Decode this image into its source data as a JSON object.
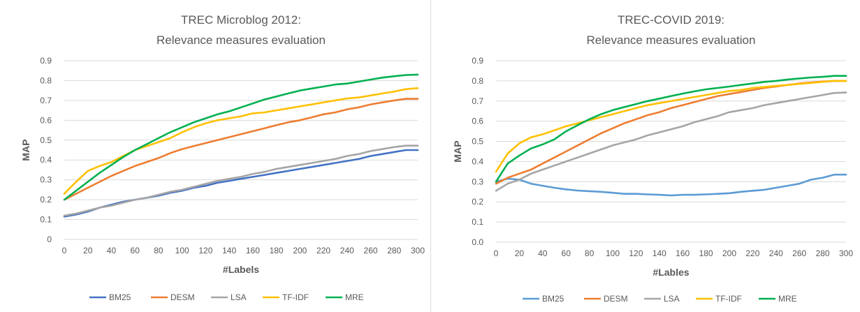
{
  "chart_data": [
    {
      "type": "line",
      "title_lines": [
        "TREC Microblog 2012:",
        "Relevance measures evaluation"
      ],
      "xlabel": "#Labels",
      "ylabel": "MAP",
      "x": [
        0,
        10,
        20,
        30,
        40,
        50,
        60,
        70,
        80,
        90,
        100,
        110,
        120,
        130,
        140,
        150,
        160,
        170,
        180,
        190,
        200,
        210,
        220,
        230,
        240,
        250,
        260,
        270,
        280,
        290,
        300
      ],
      "xticks": [
        0,
        20,
        40,
        60,
        80,
        100,
        120,
        140,
        160,
        180,
        200,
        220,
        240,
        260,
        280,
        300
      ],
      "xlim": [
        0,
        300
      ],
      "ylim": [
        0,
        0.9
      ],
      "yticks": [
        0,
        0.1,
        0.2,
        0.3,
        0.4,
        0.5,
        0.6,
        0.7,
        0.8,
        0.9
      ],
      "ytick_labels": [
        "0",
        "0.1",
        "0.2",
        "0.3",
        "0.4",
        "0.5",
        "0.6",
        "0.7",
        "0.8",
        "0.9"
      ],
      "grid": true,
      "legend_position": "bottom",
      "series": [
        {
          "name": "BM25",
          "color": "#4472C4",
          "values": [
            0.115,
            0.125,
            0.14,
            0.16,
            0.175,
            0.19,
            0.2,
            0.21,
            0.22,
            0.235,
            0.245,
            0.26,
            0.27,
            0.285,
            0.295,
            0.305,
            0.315,
            0.325,
            0.335,
            0.345,
            0.355,
            0.365,
            0.375,
            0.385,
            0.395,
            0.405,
            0.42,
            0.43,
            0.44,
            0.45,
            0.45
          ]
        },
        {
          "name": "DESM",
          "color": "#ED7D31",
          "values": [
            0.2,
            0.23,
            0.26,
            0.29,
            0.32,
            0.345,
            0.37,
            0.39,
            0.41,
            0.435,
            0.455,
            0.47,
            0.485,
            0.5,
            0.515,
            0.53,
            0.545,
            0.56,
            0.575,
            0.59,
            0.6,
            0.615,
            0.63,
            0.64,
            0.655,
            0.665,
            0.68,
            0.69,
            0.7,
            0.708,
            0.708
          ]
        },
        {
          "name": "LSA",
          "color": "#A5A5A5",
          "values": [
            0.12,
            0.13,
            0.145,
            0.16,
            0.17,
            0.185,
            0.2,
            0.21,
            0.225,
            0.24,
            0.25,
            0.265,
            0.28,
            0.295,
            0.305,
            0.315,
            0.33,
            0.34,
            0.355,
            0.365,
            0.375,
            0.385,
            0.395,
            0.405,
            0.42,
            0.43,
            0.445,
            0.455,
            0.465,
            0.472,
            0.472
          ]
        },
        {
          "name": "TF-IDF",
          "color": "#FFC000",
          "values": [
            0.23,
            0.29,
            0.345,
            0.37,
            0.39,
            0.42,
            0.45,
            0.47,
            0.49,
            0.51,
            0.54,
            0.565,
            0.585,
            0.6,
            0.61,
            0.62,
            0.635,
            0.64,
            0.65,
            0.66,
            0.67,
            0.68,
            0.69,
            0.7,
            0.71,
            0.715,
            0.725,
            0.735,
            0.745,
            0.757,
            0.762
          ]
        },
        {
          "name": "MRE",
          "color": "#00B050",
          "values": [
            0.2,
            0.245,
            0.29,
            0.335,
            0.375,
            0.415,
            0.45,
            0.48,
            0.51,
            0.54,
            0.565,
            0.59,
            0.61,
            0.63,
            0.645,
            0.665,
            0.685,
            0.705,
            0.72,
            0.735,
            0.75,
            0.76,
            0.77,
            0.78,
            0.785,
            0.795,
            0.805,
            0.815,
            0.822,
            0.828,
            0.83
          ]
        }
      ]
    },
    {
      "type": "line",
      "title_lines": [
        "TREC-COVID 2019:",
        "Relevance measures evaluation"
      ],
      "xlabel": "#Lables",
      "ylabel": "MAP",
      "x": [
        0,
        10,
        20,
        30,
        40,
        50,
        60,
        70,
        80,
        90,
        100,
        110,
        120,
        130,
        140,
        150,
        160,
        170,
        180,
        190,
        200,
        210,
        220,
        230,
        240,
        250,
        260,
        270,
        280,
        290,
        300
      ],
      "xticks": [
        0,
        20,
        40,
        60,
        80,
        100,
        120,
        140,
        160,
        180,
        200,
        220,
        240,
        260,
        280,
        300
      ],
      "xlim": [
        0,
        300
      ],
      "ylim": [
        0,
        0.9
      ],
      "yticks": [
        0,
        0.1,
        0.2,
        0.3,
        0.4,
        0.5,
        0.6,
        0.7,
        0.8,
        0.9
      ],
      "ytick_labels": [
        "0.0",
        "0.1",
        "0.2",
        "0.3",
        "0.4",
        "0.5",
        "0.6",
        "0.7",
        "0.8",
        "0.9"
      ],
      "grid": true,
      "legend_position": "bottom",
      "series": [
        {
          "name": "BM25",
          "color": "#5B9BD5",
          "values": [
            0.3,
            0.315,
            0.31,
            0.29,
            0.28,
            0.27,
            0.262,
            0.256,
            0.253,
            0.25,
            0.245,
            0.24,
            0.24,
            0.237,
            0.235,
            0.232,
            0.235,
            0.235,
            0.237,
            0.24,
            0.243,
            0.25,
            0.255,
            0.26,
            0.27,
            0.28,
            0.29,
            0.31,
            0.32,
            0.335,
            0.335
          ]
        },
        {
          "name": "DESM",
          "color": "#ED7D31",
          "values": [
            0.29,
            0.32,
            0.34,
            0.36,
            0.39,
            0.42,
            0.45,
            0.48,
            0.51,
            0.54,
            0.565,
            0.59,
            0.61,
            0.63,
            0.645,
            0.665,
            0.68,
            0.695,
            0.71,
            0.725,
            0.735,
            0.745,
            0.755,
            0.765,
            0.772,
            0.78,
            0.787,
            0.792,
            0.797,
            0.8,
            0.8
          ]
        },
        {
          "name": "LSA",
          "color": "#A5A5A5",
          "values": [
            0.255,
            0.29,
            0.31,
            0.34,
            0.36,
            0.38,
            0.4,
            0.42,
            0.44,
            0.46,
            0.48,
            0.495,
            0.51,
            0.53,
            0.545,
            0.56,
            0.575,
            0.595,
            0.61,
            0.625,
            0.645,
            0.655,
            0.665,
            0.68,
            0.69,
            0.7,
            0.71,
            0.72,
            0.73,
            0.74,
            0.742
          ]
        },
        {
          "name": "TF-IDF",
          "color": "#FFC000",
          "values": [
            0.35,
            0.44,
            0.49,
            0.52,
            0.535,
            0.555,
            0.575,
            0.59,
            0.605,
            0.62,
            0.635,
            0.65,
            0.665,
            0.68,
            0.69,
            0.7,
            0.71,
            0.72,
            0.73,
            0.74,
            0.75,
            0.755,
            0.765,
            0.77,
            0.775,
            0.78,
            0.785,
            0.79,
            0.795,
            0.8,
            0.8
          ]
        },
        {
          "name": "MRE",
          "color": "#00B050",
          "values": [
            0.3,
            0.39,
            0.43,
            0.465,
            0.485,
            0.51,
            0.55,
            0.58,
            0.61,
            0.635,
            0.655,
            0.67,
            0.685,
            0.7,
            0.712,
            0.725,
            0.737,
            0.748,
            0.758,
            0.765,
            0.772,
            0.78,
            0.787,
            0.795,
            0.8,
            0.807,
            0.812,
            0.817,
            0.82,
            0.825,
            0.825
          ]
        }
      ]
    }
  ]
}
